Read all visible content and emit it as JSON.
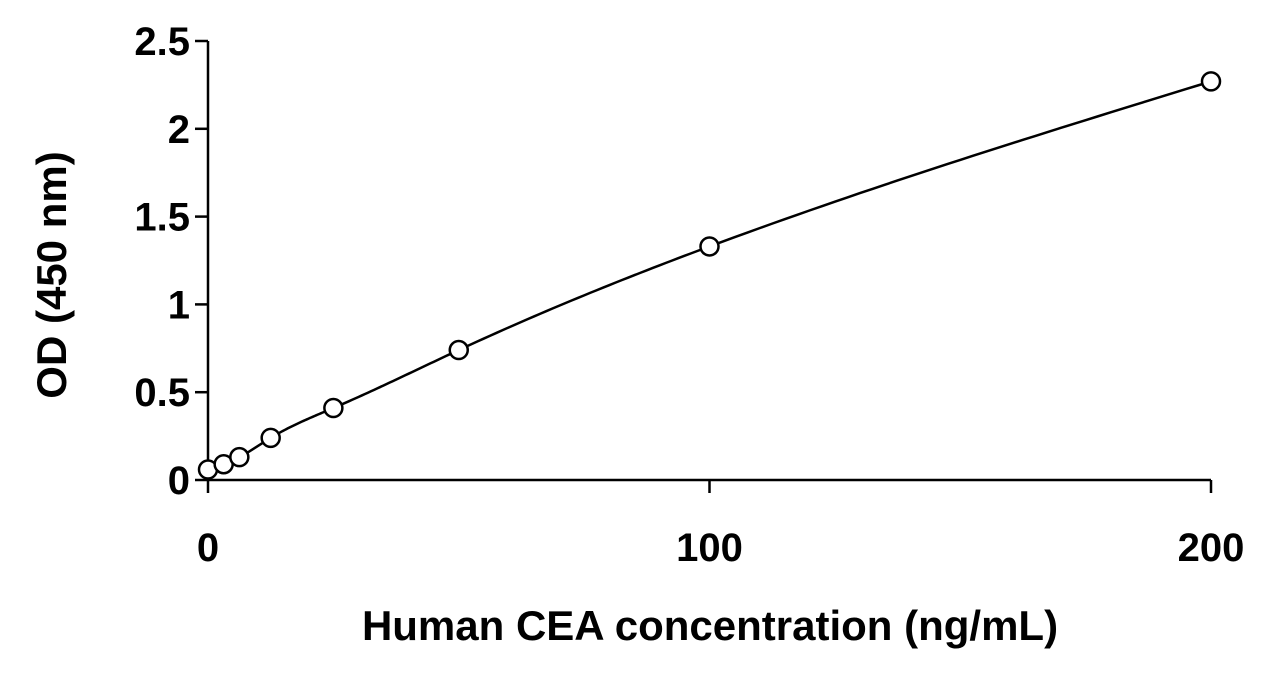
{
  "chart_data": {
    "type": "scatter",
    "xlabel": "Human CEA concentration (ng/mL)",
    "ylabel": "OD (450 nm)",
    "xlim": [
      0,
      200
    ],
    "ylim": [
      0,
      2.5
    ],
    "x_ticks": [
      0,
      100,
      200
    ],
    "x_tick_labels": [
      "0",
      "100",
      "200"
    ],
    "y_ticks": [
      0,
      0.5,
      1,
      1.5,
      2,
      2.5
    ],
    "y_tick_labels": [
      "0",
      "0.5",
      "1",
      "1.5",
      "2",
      "2.5"
    ],
    "grid": false,
    "legend": "none",
    "series": [
      {
        "x": [
          0,
          3.125,
          6.25,
          12.5,
          25,
          50,
          100,
          200
        ],
        "y": [
          0.06,
          0.09,
          0.13,
          0.24,
          0.41,
          0.74,
          1.33,
          2.27
        ],
        "marker": "open-circle",
        "fit_line": true,
        "color": "#000000"
      }
    ]
  }
}
